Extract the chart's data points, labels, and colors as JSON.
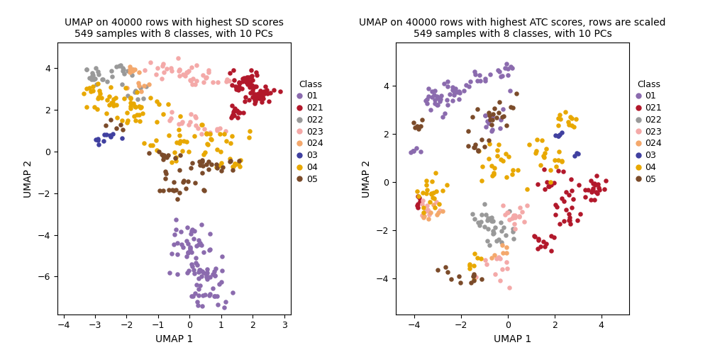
{
  "plot1": {
    "title": "UMAP on 40000 rows with highest SD scores\n549 samples with 8 classes, with 10 PCs",
    "xlabel": "UMAP 1",
    "ylabel": "UMAP 2",
    "xlim": [
      -4.2,
      3.2
    ],
    "ylim": [
      -7.8,
      5.2
    ],
    "xticks": [
      -4,
      -3,
      -2,
      -1,
      0,
      1,
      2,
      3
    ],
    "yticks": [
      -6,
      -4,
      -2,
      0,
      2,
      4
    ]
  },
  "plot2": {
    "title": "UMAP on 40000 rows with highest ATC scores, rows are scaled\n549 samples with 8 classes, with 10 PCs",
    "xlabel": "UMAP 1",
    "ylabel": "UMAP 2",
    "xlim": [
      -4.8,
      5.2
    ],
    "ylim": [
      -5.5,
      5.8
    ],
    "xticks": [
      -4,
      -2,
      0,
      2,
      4
    ],
    "yticks": [
      -4,
      -2,
      0,
      2,
      4
    ]
  },
  "classes": [
    "01",
    "021",
    "022",
    "023",
    "024",
    "03",
    "04",
    "05"
  ],
  "colors": {
    "01": "#8B6BAE",
    "021": "#B2182B",
    "022": "#999999",
    "023": "#F4A9A8",
    "024": "#F4A86C",
    "03": "#4040A0",
    "04": "#E8A800",
    "05": "#7B4B2A"
  },
  "legend_title": "Class",
  "dot_size": 22
}
